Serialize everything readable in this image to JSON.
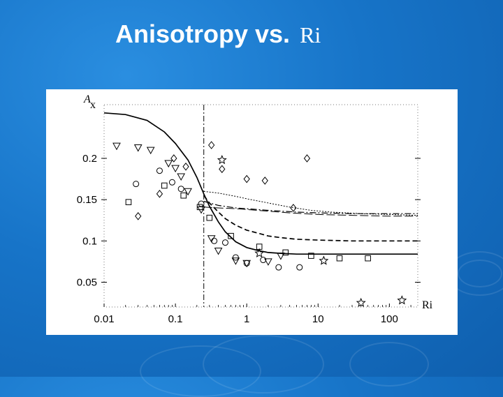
{
  "slide": {
    "title": "Anisotropy vs.",
    "title_symbol": "Ri"
  },
  "colors": {
    "background": "#1774c8",
    "panel": "#ffffff",
    "ink": "#000000",
    "title": "#ffffff"
  },
  "chart_data": {
    "type": "scatter",
    "title": "",
    "xlabel": "Ri",
    "ylabel": "A",
    "ylabel_subscript": "x",
    "xscale": "log",
    "xlim": [
      0.01,
      250
    ],
    "ylim": [
      0.02,
      0.265
    ],
    "x_ticks": [
      0.01,
      0.1,
      1,
      10,
      100
    ],
    "x_tick_labels": [
      "0.01",
      "0.1",
      "1",
      "10",
      "100"
    ],
    "y_ticks": [
      0.05,
      0.1,
      0.15,
      0.2
    ],
    "y_tick_labels": [
      "0.05",
      "0.1",
      "0.15",
      "0.2"
    ],
    "grid": false,
    "reference_line_x": 0.25,
    "curves": [
      {
        "style": "solid",
        "points": [
          [
            0.01,
            0.255
          ],
          [
            0.02,
            0.253
          ],
          [
            0.04,
            0.246
          ],
          [
            0.07,
            0.232
          ],
          [
            0.1,
            0.218
          ],
          [
            0.15,
            0.198
          ],
          [
            0.2,
            0.177
          ],
          [
            0.25,
            0.157
          ],
          [
            0.3,
            0.142
          ],
          [
            0.4,
            0.123
          ],
          [
            0.5,
            0.111
          ],
          [
            0.7,
            0.099
          ],
          [
            1,
            0.092
          ],
          [
            1.5,
            0.088
          ],
          [
            2,
            0.086
          ],
          [
            3,
            0.085
          ],
          [
            5,
            0.084
          ],
          [
            10,
            0.084
          ],
          [
            30,
            0.084
          ],
          [
            100,
            0.084
          ],
          [
            250,
            0.084
          ]
        ]
      },
      {
        "style": "dashed",
        "points": [
          [
            0.25,
            0.155
          ],
          [
            0.3,
            0.146
          ],
          [
            0.4,
            0.135
          ],
          [
            0.5,
            0.127
          ],
          [
            0.7,
            0.119
          ],
          [
            1,
            0.113
          ],
          [
            1.5,
            0.109
          ],
          [
            2,
            0.106
          ],
          [
            3,
            0.104
          ],
          [
            5,
            0.102
          ],
          [
            10,
            0.101
          ],
          [
            30,
            0.1
          ],
          [
            100,
            0.1
          ],
          [
            250,
            0.1
          ]
        ]
      },
      {
        "style": "dash-dot",
        "points": [
          [
            0.25,
            0.148
          ],
          [
            0.4,
            0.143
          ],
          [
            0.7,
            0.14
          ],
          [
            1,
            0.139
          ],
          [
            2,
            0.137
          ],
          [
            5,
            0.135
          ],
          [
            10,
            0.134
          ],
          [
            30,
            0.133
          ],
          [
            100,
            0.133
          ],
          [
            250,
            0.133
          ]
        ]
      },
      {
        "style": "dotted",
        "points": [
          [
            0.25,
            0.16
          ],
          [
            0.4,
            0.158
          ],
          [
            0.7,
            0.154
          ],
          [
            1,
            0.151
          ],
          [
            2,
            0.146
          ],
          [
            4,
            0.141
          ],
          [
            8,
            0.137
          ],
          [
            15,
            0.135
          ],
          [
            40,
            0.133
          ],
          [
            100,
            0.132
          ],
          [
            250,
            0.131
          ]
        ]
      },
      {
        "style": "long-dash",
        "points": [
          [
            0.25,
            0.141
          ],
          [
            0.4,
            0.14
          ],
          [
            0.7,
            0.139
          ],
          [
            1,
            0.138
          ],
          [
            2,
            0.136
          ],
          [
            4,
            0.134
          ],
          [
            10,
            0.132
          ],
          [
            30,
            0.131
          ],
          [
            100,
            0.13
          ],
          [
            250,
            0.13
          ]
        ]
      }
    ],
    "series": [
      {
        "marker": "down-triangle",
        "points": [
          [
            0.015,
            0.215
          ],
          [
            0.03,
            0.213
          ],
          [
            0.045,
            0.21
          ],
          [
            0.08,
            0.194
          ],
          [
            0.1,
            0.188
          ],
          [
            0.12,
            0.178
          ],
          [
            0.15,
            0.16
          ],
          [
            0.23,
            0.138
          ],
          [
            0.32,
            0.103
          ],
          [
            0.4,
            0.088
          ],
          [
            0.7,
            0.076
          ],
          [
            1.0,
            0.073
          ],
          [
            2.0,
            0.075
          ],
          [
            3.0,
            0.082
          ]
        ]
      },
      {
        "marker": "circle",
        "points": [
          [
            0.028,
            0.169
          ],
          [
            0.06,
            0.185
          ],
          [
            0.09,
            0.171
          ],
          [
            0.12,
            0.163
          ],
          [
            0.23,
            0.145
          ],
          [
            0.35,
            0.1
          ],
          [
            0.5,
            0.098
          ],
          [
            0.7,
            0.08
          ],
          [
            1.0,
            0.073
          ],
          [
            1.7,
            0.077
          ],
          [
            2.8,
            0.068
          ],
          [
            5.5,
            0.068
          ]
        ]
      },
      {
        "marker": "square",
        "points": [
          [
            0.022,
            0.147
          ],
          [
            0.07,
            0.167
          ],
          [
            0.13,
            0.155
          ],
          [
            0.22,
            0.141
          ],
          [
            0.3,
            0.128
          ],
          [
            0.6,
            0.106
          ],
          [
            1.5,
            0.093
          ],
          [
            3.5,
            0.086
          ],
          [
            8,
            0.082
          ],
          [
            20,
            0.079
          ],
          [
            50,
            0.079
          ]
        ]
      },
      {
        "marker": "diamond",
        "points": [
          [
            0.03,
            0.13
          ],
          [
            0.06,
            0.157
          ],
          [
            0.095,
            0.2
          ],
          [
            0.14,
            0.19
          ],
          [
            0.32,
            0.216
          ],
          [
            0.45,
            0.187
          ],
          [
            1.0,
            0.175
          ],
          [
            1.8,
            0.173
          ],
          [
            4.5,
            0.14
          ],
          [
            7,
            0.2
          ]
        ]
      },
      {
        "marker": "star",
        "points": [
          [
            0.45,
            0.198
          ],
          [
            1.5,
            0.085
          ],
          [
            12,
            0.076
          ],
          [
            40,
            0.025
          ],
          [
            150,
            0.028
          ]
        ]
      }
    ]
  }
}
